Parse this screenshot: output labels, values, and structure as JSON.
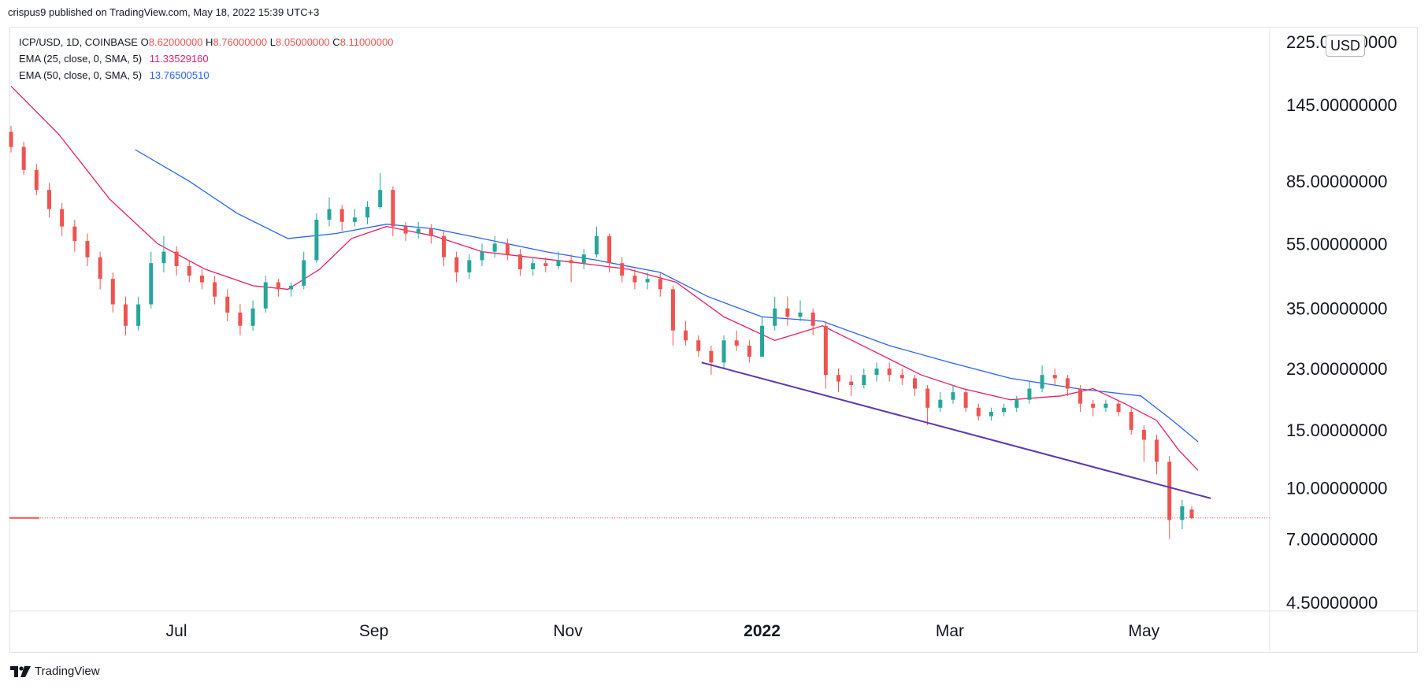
{
  "header": {
    "published_text": "crispus9 published on TradingView.com, May 18, 2022 15:39 UTC+3"
  },
  "legend": {
    "symbol_line": "ICP/USD, 1D, COINBASE",
    "ohlc": {
      "o": "8.62000000",
      "h": "8.76000000",
      "l": "8.05000000",
      "c": "8.11000000"
    },
    "ema25_label": "EMA (25, close, 0, SMA, 5)",
    "ema25_value": "11.33529160",
    "ema50_label": "EMA (50, close, 0, SMA, 5)",
    "ema50_value": "13.76500510"
  },
  "currency_badge": "USD",
  "footer": {
    "brand": "TradingView"
  },
  "colors": {
    "up": "#26a69a",
    "down": "#ef5350",
    "ema25": "#e91e63",
    "ema50": "#2962ff",
    "trendline": "#5e35b1"
  },
  "chart_data": {
    "type": "line",
    "scale": "log",
    "grid": false,
    "y_ticks": [
      "225.00000000",
      "145.00000000",
      "85.00000000",
      "55.00000000",
      "35.00000000",
      "23.00000000",
      "15.00000000",
      "10.00000000",
      "7.00000000",
      "4.50000000"
    ],
    "y_tick_values": [
      225,
      145,
      85,
      55,
      35,
      23,
      15,
      10,
      7,
      4.5
    ],
    "x_ticks": [
      {
        "label": "Jul",
        "date": "2021-07-01"
      },
      {
        "label": "Sep",
        "date": "2021-09-01"
      },
      {
        "label": "Nov",
        "date": "2021-11-01"
      },
      {
        "label": "2022",
        "date": "2022-01-01",
        "bold": true
      },
      {
        "label": "Mar",
        "date": "2022-03-01"
      },
      {
        "label": "May",
        "date": "2022-05-01"
      }
    ],
    "last_price": 8.11,
    "ema25": [
      [
        "2021-05-10",
        165
      ],
      [
        "2021-05-25",
        118
      ],
      [
        "2021-06-10",
        75
      ],
      [
        "2021-06-25",
        55
      ],
      [
        "2021-07-10",
        46
      ],
      [
        "2021-07-25",
        41
      ],
      [
        "2021-08-05",
        40
      ],
      [
        "2021-08-15",
        46
      ],
      [
        "2021-08-25",
        57
      ],
      [
        "2021-09-05",
        62
      ],
      [
        "2021-09-20",
        58
      ],
      [
        "2021-10-05",
        52
      ],
      [
        "2021-10-20",
        50
      ],
      [
        "2021-11-05",
        48
      ],
      [
        "2021-11-20",
        46
      ],
      [
        "2021-12-05",
        42
      ],
      [
        "2021-12-20",
        33
      ],
      [
        "2022-01-05",
        28
      ],
      [
        "2022-01-20",
        31
      ],
      [
        "2022-02-05",
        26
      ],
      [
        "2022-02-20",
        22
      ],
      [
        "2022-03-05",
        20
      ],
      [
        "2022-03-20",
        18.5
      ],
      [
        "2022-04-05",
        19
      ],
      [
        "2022-04-15",
        20
      ],
      [
        "2022-04-25",
        18
      ],
      [
        "2022-05-05",
        16
      ],
      [
        "2022-05-12",
        13
      ],
      [
        "2022-05-18",
        11.3
      ]
    ],
    "ema50": [
      [
        "2021-06-18",
        106
      ],
      [
        "2021-07-05",
        85
      ],
      [
        "2021-07-20",
        68
      ],
      [
        "2021-08-05",
        57
      ],
      [
        "2021-08-20",
        59
      ],
      [
        "2021-09-05",
        63
      ],
      [
        "2021-09-20",
        61
      ],
      [
        "2021-10-05",
        57
      ],
      [
        "2021-10-25",
        52
      ],
      [
        "2021-11-10",
        49
      ],
      [
        "2021-11-30",
        45
      ],
      [
        "2021-12-15",
        38
      ],
      [
        "2022-01-01",
        33
      ],
      [
        "2022-01-20",
        32
      ],
      [
        "2022-02-10",
        27
      ],
      [
        "2022-03-01",
        24
      ],
      [
        "2022-03-20",
        21.5
      ],
      [
        "2022-04-10",
        20
      ],
      [
        "2022-04-30",
        19
      ],
      [
        "2022-05-10",
        16
      ],
      [
        "2022-05-18",
        13.8
      ]
    ],
    "trendline": [
      [
        "2021-12-13",
        24
      ],
      [
        "2022-05-22",
        9.3
      ]
    ],
    "candles": [
      [
        "2021-05-10",
        120,
        108,
        125,
        104
      ],
      [
        "2021-05-14",
        108,
        92,
        112,
        89
      ],
      [
        "2021-05-18",
        92,
        80,
        96,
        77
      ],
      [
        "2021-05-22",
        80,
        70,
        84,
        66
      ],
      [
        "2021-05-26",
        70,
        62,
        73,
        58
      ],
      [
        "2021-05-30",
        62,
        56,
        65,
        52
      ],
      [
        "2021-06-03",
        56,
        50,
        59,
        47
      ],
      [
        "2021-06-07",
        50,
        43,
        52,
        40
      ],
      [
        "2021-06-11",
        43,
        36,
        45,
        34
      ],
      [
        "2021-06-15",
        36,
        31,
        38,
        29
      ],
      [
        "2021-06-19",
        31,
        36,
        38,
        30
      ],
      [
        "2021-06-23",
        36,
        48,
        52,
        35
      ],
      [
        "2021-06-27",
        48,
        52,
        58,
        45
      ],
      [
        "2021-07-01",
        52,
        47,
        54,
        44
      ],
      [
        "2021-07-05",
        47,
        44,
        49,
        42
      ],
      [
        "2021-07-09",
        44,
        42,
        46,
        40
      ],
      [
        "2021-07-13",
        42,
        38,
        44,
        36
      ],
      [
        "2021-07-17",
        38,
        34,
        40,
        32
      ],
      [
        "2021-07-21",
        34,
        31,
        36,
        29
      ],
      [
        "2021-07-25",
        31,
        35,
        37,
        30
      ],
      [
        "2021-07-29",
        35,
        42,
        44,
        34
      ],
      [
        "2021-08-02",
        42,
        40,
        43,
        38
      ],
      [
        "2021-08-06",
        40,
        41,
        42,
        38
      ],
      [
        "2021-08-10",
        41,
        49,
        52,
        40
      ],
      [
        "2021-08-14",
        49,
        65,
        68,
        48
      ],
      [
        "2021-08-18",
        65,
        70,
        76,
        62
      ],
      [
        "2021-08-22",
        70,
        64,
        72,
        60
      ],
      [
        "2021-08-26",
        64,
        66,
        70,
        62
      ],
      [
        "2021-08-30",
        66,
        71,
        74,
        63
      ],
      [
        "2021-09-03",
        71,
        80,
        90,
        70
      ],
      [
        "2021-09-07",
        80,
        62,
        82,
        58
      ],
      [
        "2021-09-11",
        62,
        59,
        64,
        56
      ],
      [
        "2021-09-15",
        59,
        61,
        64,
        57
      ],
      [
        "2021-09-19",
        61,
        58,
        63,
        55
      ],
      [
        "2021-09-23",
        58,
        50,
        60,
        47
      ],
      [
        "2021-09-27",
        50,
        45,
        52,
        42
      ],
      [
        "2021-10-01",
        45,
        49,
        51,
        43
      ],
      [
        "2021-10-05",
        49,
        52,
        55,
        47
      ],
      [
        "2021-10-09",
        52,
        55,
        58,
        50
      ],
      [
        "2021-10-13",
        55,
        51,
        57,
        49
      ],
      [
        "2021-10-17",
        51,
        46,
        53,
        44
      ],
      [
        "2021-10-21",
        46,
        48,
        50,
        44
      ],
      [
        "2021-10-25",
        48,
        47,
        50,
        45
      ],
      [
        "2021-10-29",
        47,
        49,
        52,
        46
      ],
      [
        "2021-11-02",
        49,
        48,
        51,
        42
      ],
      [
        "2021-11-06",
        48,
        51,
        53,
        46
      ],
      [
        "2021-11-10",
        51,
        58,
        62,
        50
      ],
      [
        "2021-11-14",
        58,
        48,
        59,
        45
      ],
      [
        "2021-11-18",
        48,
        44,
        50,
        42
      ],
      [
        "2021-11-22",
        44,
        42,
        46,
        40
      ],
      [
        "2021-11-26",
        42,
        43,
        45,
        40
      ],
      [
        "2021-11-30",
        43,
        40,
        45,
        38
      ],
      [
        "2021-12-04",
        40,
        30,
        41,
        27
      ],
      [
        "2021-12-08",
        30,
        28,
        32,
        27
      ],
      [
        "2021-12-12",
        28,
        26,
        29,
        25
      ],
      [
        "2021-12-16",
        26,
        24,
        27,
        22
      ],
      [
        "2021-12-20",
        24,
        28,
        29,
        23
      ],
      [
        "2021-12-24",
        28,
        27,
        30,
        26
      ],
      [
        "2021-12-28",
        27,
        25,
        28,
        24
      ],
      [
        "2022-01-01",
        25,
        31,
        33,
        25
      ],
      [
        "2022-01-05",
        31,
        35,
        38,
        30
      ],
      [
        "2022-01-09",
        35,
        33,
        38,
        31
      ],
      [
        "2022-01-13",
        33,
        34,
        37,
        32
      ],
      [
        "2022-01-17",
        34,
        31,
        35,
        29
      ],
      [
        "2022-01-21",
        31,
        22,
        32,
        20
      ],
      [
        "2022-01-25",
        22,
        21,
        23,
        19.5
      ],
      [
        "2022-01-29",
        21,
        20.5,
        22,
        19
      ],
      [
        "2022-02-02",
        20.5,
        22,
        23,
        20
      ],
      [
        "2022-02-06",
        22,
        23,
        24,
        21
      ],
      [
        "2022-02-10",
        23,
        22,
        24,
        21
      ],
      [
        "2022-02-14",
        22,
        21.5,
        23,
        20.5
      ],
      [
        "2022-02-18",
        21.5,
        20,
        22,
        19
      ],
      [
        "2022-02-22",
        20,
        17.5,
        20.5,
        15.5
      ],
      [
        "2022-02-26",
        17.5,
        18.5,
        19.5,
        17
      ],
      [
        "2022-03-02",
        18.5,
        19.5,
        20.5,
        18
      ],
      [
        "2022-03-06",
        19.5,
        17.5,
        20,
        17
      ],
      [
        "2022-03-10",
        17.5,
        16.5,
        18,
        16
      ],
      [
        "2022-03-14",
        16.5,
        17,
        17.5,
        16
      ],
      [
        "2022-03-18",
        17,
        17.5,
        18,
        16.5
      ],
      [
        "2022-03-22",
        17.5,
        18.5,
        19,
        17
      ],
      [
        "2022-03-26",
        18.5,
        20,
        21,
        18
      ],
      [
        "2022-03-30",
        20,
        22,
        23.5,
        19.5
      ],
      [
        "2022-04-03",
        22,
        21.5,
        23,
        20.5
      ],
      [
        "2022-04-07",
        21.5,
        20,
        22,
        19
      ],
      [
        "2022-04-11",
        20,
        18,
        20.5,
        17
      ],
      [
        "2022-04-15",
        18,
        17.5,
        18.5,
        16.5
      ],
      [
        "2022-04-19",
        17.5,
        18,
        18.5,
        17
      ],
      [
        "2022-04-23",
        18,
        17,
        18.5,
        16.5
      ],
      [
        "2022-04-27",
        17,
        15,
        17.5,
        14.5
      ],
      [
        "2022-05-01",
        15,
        14,
        15.5,
        12
      ],
      [
        "2022-05-05",
        14,
        12,
        14.5,
        11
      ],
      [
        "2022-05-09",
        12,
        8,
        12.5,
        7
      ],
      [
        "2022-05-13",
        8,
        8.8,
        9.2,
        7.5
      ],
      [
        "2022-05-16",
        8.6,
        8.1,
        8.8,
        8.05
      ]
    ]
  }
}
